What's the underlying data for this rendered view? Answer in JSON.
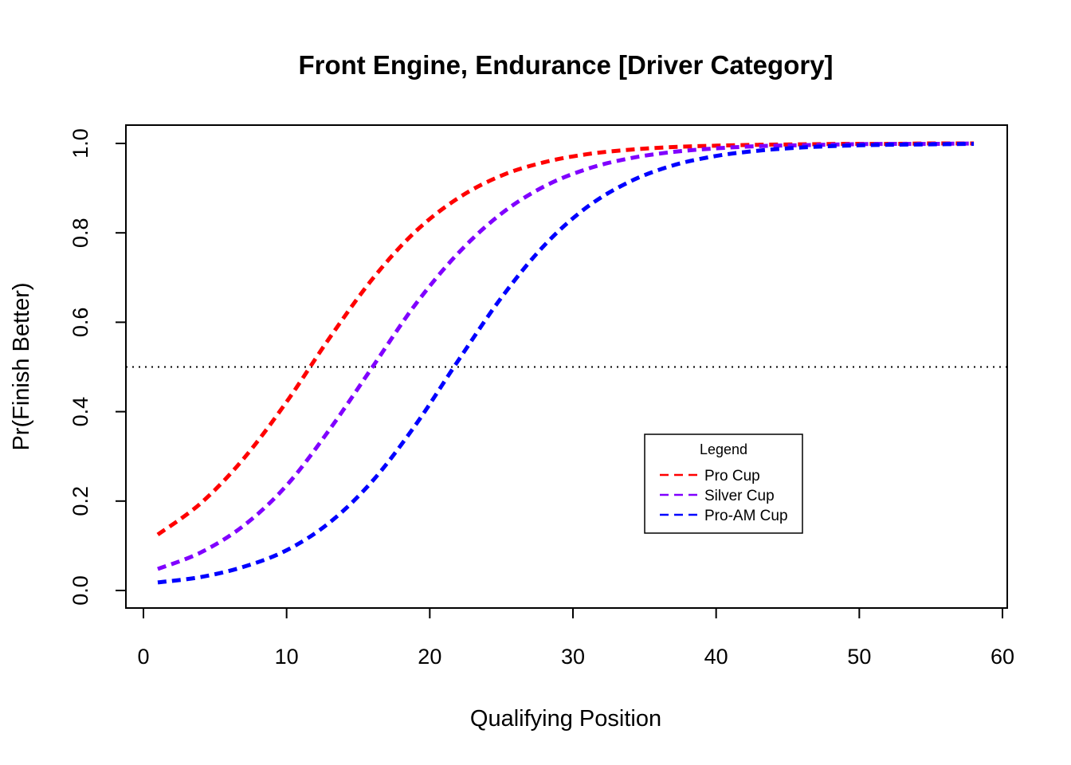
{
  "chart_data": {
    "type": "line",
    "title": "Front Engine, Endurance [Driver Category]",
    "xlabel": "Qualifying Position",
    "ylabel": "Pr(Finish Better)",
    "xlim": [
      0,
      60
    ],
    "ylim": [
      0,
      1
    ],
    "x_ticks": [
      0,
      10,
      20,
      30,
      40,
      50,
      60
    ],
    "y_ticks": [
      "0.0",
      "0.2",
      "0.4",
      "0.6",
      "0.8",
      "1.0"
    ],
    "reference_line": {
      "y": 0.5,
      "style": "dotted",
      "color": "#000000"
    },
    "grid": false,
    "legend": {
      "title": "Legend",
      "position": "lower-right"
    },
    "x": [
      1,
      4,
      7,
      10,
      13,
      16,
      19,
      22,
      25,
      28,
      31,
      34,
      37,
      40,
      43,
      46,
      49,
      52,
      55,
      58
    ],
    "series": [
      {
        "name": "Pro Cup",
        "color": "#ff0000",
        "values": [
          0.125,
          0.195,
          0.295,
          0.422,
          0.565,
          0.697,
          0.803,
          0.878,
          0.928,
          0.958,
          0.976,
          0.986,
          0.992,
          0.995,
          0.997,
          0.998,
          0.999,
          0.999,
          1.0,
          1.0
        ]
      },
      {
        "name": "Silver Cup",
        "color": "#8000ff",
        "values": [
          0.048,
          0.085,
          0.145,
          0.235,
          0.36,
          0.5,
          0.64,
          0.755,
          0.843,
          0.904,
          0.943,
          0.967,
          0.981,
          0.989,
          0.994,
          0.996,
          0.998,
          0.999,
          0.999,
          1.0
        ]
      },
      {
        "name": "Pro-AM Cup",
        "color": "#0000ff",
        "values": [
          0.018,
          0.03,
          0.053,
          0.09,
          0.152,
          0.245,
          0.37,
          0.515,
          0.655,
          0.772,
          0.858,
          0.915,
          0.951,
          0.972,
          0.984,
          0.991,
          0.995,
          0.997,
          0.998,
          0.999
        ]
      }
    ]
  }
}
